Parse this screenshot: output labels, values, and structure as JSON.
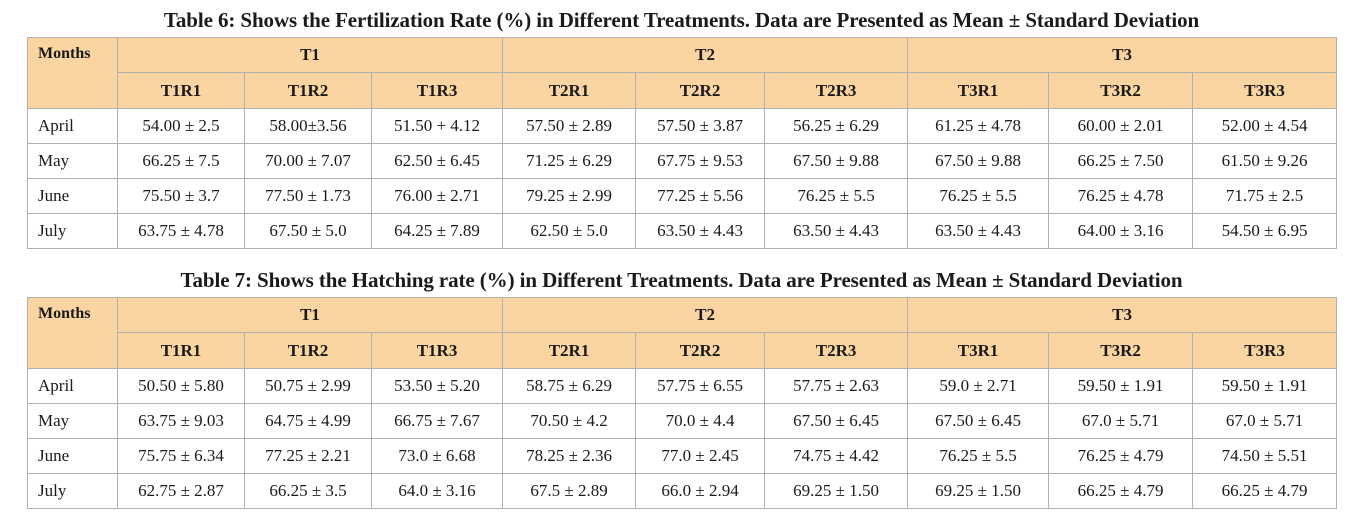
{
  "tables": [
    {
      "caption": "Table 6: Shows the Fertilization Rate (%) in Different Treatments. Data are Presented as Mean ± Standard Deviation",
      "months_header": "Months",
      "groups": [
        "T1",
        "T2",
        "T3"
      ],
      "subheaders": [
        "T1R1",
        "T1R2",
        "T1R3",
        "T2R1",
        "T2R2",
        "T2R3",
        "T3R1",
        "T3R2",
        "T3R3"
      ],
      "rows": [
        {
          "month": "April",
          "cells": [
            "54.00 ± 2.5",
            "58.00±3.56",
            "51.50 + 4.12",
            "57.50 ± 2.89",
            "57.50 ± 3.87",
            "56.25 ± 6.29",
            "61.25 ± 4.78",
            "60.00 ± 2.01",
            "52.00 ± 4.54"
          ]
        },
        {
          "month": "May",
          "cells": [
            "66.25 ± 7.5",
            "70.00 ± 7.07",
            "62.50 ± 6.45",
            "71.25 ± 6.29",
            "67.75 ± 9.53",
            "67.50 ± 9.88",
            "67.50 ± 9.88",
            "66.25 ± 7.50",
            "61.50 ± 9.26"
          ]
        },
        {
          "month": "June",
          "cells": [
            "75.50 ± 3.7",
            "77.50 ± 1.73",
            "76.00 ± 2.71",
            "79.25 ± 2.99",
            "77.25 ± 5.56",
            "76.25 ± 5.5",
            "76.25 ± 5.5",
            "76.25 ± 4.78",
            "71.75 ± 2.5"
          ]
        },
        {
          "month": "July",
          "cells": [
            "63.75 ± 4.78",
            "67.50 ± 5.0",
            "64.25 ± 7.89",
            "62.50 ± 5.0",
            "63.50 ± 4.43",
            "63.50 ± 4.43",
            "63.50 ± 4.43",
            "64.00 ± 3.16",
            "54.50 ± 6.95"
          ]
        }
      ]
    },
    {
      "caption": "Table 7: Shows the Hatching rate (%) in Different Treatments. Data are Presented as Mean ± Standard Deviation",
      "months_header": "Months",
      "groups": [
        "T1",
        "T2",
        "T3"
      ],
      "subheaders": [
        "T1R1",
        "T1R2",
        "T1R3",
        "T2R1",
        "T2R2",
        "T2R3",
        "T3R1",
        "T3R2",
        "T3R3"
      ],
      "rows": [
        {
          "month": "April",
          "cells": [
            "50.50 ± 5.80",
            "50.75 ± 2.99",
            "53.50 ± 5.20",
            "58.75 ± 6.29",
            "57.75 ± 6.55",
            "57.75 ± 2.63",
            "59.0 ± 2.71",
            "59.50 ± 1.91",
            "59.50 ± 1.91"
          ]
        },
        {
          "month": "May",
          "cells": [
            "63.75 ± 9.03",
            "64.75 ± 4.99",
            "66.75 ± 7.67",
            "70.50 ± 4.2",
            "70.0 ± 4.4",
            "67.50 ± 6.45",
            "67.50 ± 6.45",
            "67.0 ± 5.71",
            "67.0 ± 5.71"
          ]
        },
        {
          "month": "June",
          "cells": [
            "75.75 ± 6.34",
            "77.25 ± 2.21",
            "73.0 ± 6.68",
            "78.25 ± 2.36",
            "77.0 ± 2.45",
            "74.75 ± 4.42",
            "76.25 ± 5.5",
            "76.25 ± 4.79",
            "74.50 ± 5.51"
          ]
        },
        {
          "month": "July",
          "cells": [
            "62.75 ± 2.87",
            "66.25 ± 3.5",
            "64.0 ± 3.16",
            "67.5 ± 2.89",
            "66.0 ± 2.94",
            "69.25 ± 1.50",
            "69.25 ± 1.50",
            "66.25 ± 4.79",
            "66.25 ± 4.79"
          ]
        }
      ]
    }
  ],
  "colors": {
    "header_bg": "#fbd5a1",
    "border": "#b0b0b0",
    "text": "#1a1a1a"
  }
}
